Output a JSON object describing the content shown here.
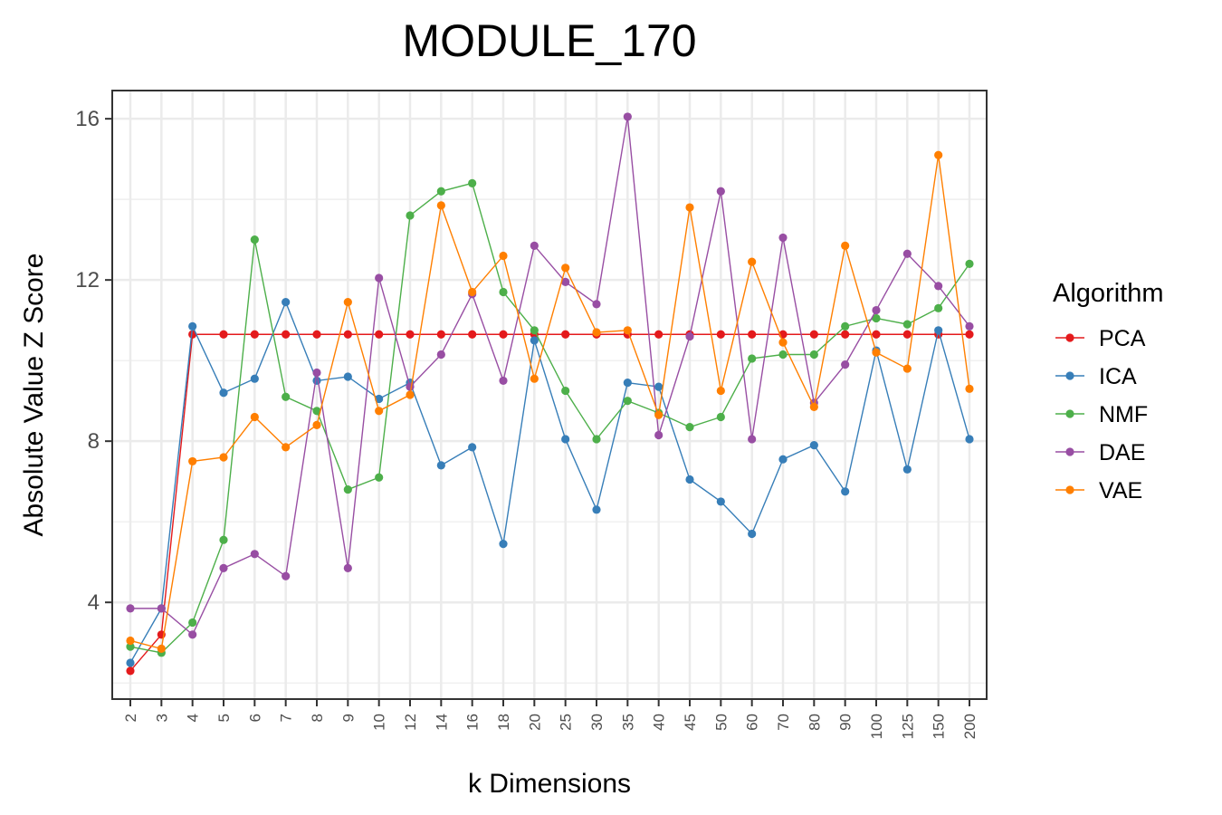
{
  "chart_data": {
    "type": "line",
    "title": "MODULE_170",
    "xlabel": "k Dimensions",
    "ylabel": "Absolute Value Z Score",
    "categories": [
      "2",
      "3",
      "4",
      "5",
      "6",
      "7",
      "8",
      "9",
      "10",
      "12",
      "14",
      "16",
      "18",
      "20",
      "25",
      "30",
      "35",
      "40",
      "45",
      "50",
      "60",
      "70",
      "80",
      "90",
      "100",
      "125",
      "150",
      "200"
    ],
    "yticks": [
      4,
      8,
      12,
      16
    ],
    "ylim": [
      1.6,
      16.7
    ],
    "grid": true,
    "legend": {
      "title": "Algorithm",
      "position": "right"
    },
    "series": [
      {
        "name": "PCA",
        "color": "#e41a1c",
        "values": [
          2.3,
          3.2,
          10.65,
          10.65,
          10.65,
          10.65,
          10.65,
          10.65,
          10.65,
          10.65,
          10.65,
          10.65,
          10.65,
          10.65,
          10.65,
          10.65,
          10.65,
          10.65,
          10.65,
          10.65,
          10.65,
          10.65,
          10.65,
          10.65,
          10.65,
          10.65,
          10.65,
          10.65
        ]
      },
      {
        "name": "ICA",
        "color": "#377eb8",
        "values": [
          2.5,
          3.85,
          10.85,
          9.2,
          9.55,
          11.45,
          9.5,
          9.6,
          9.05,
          9.45,
          7.4,
          7.85,
          5.45,
          10.5,
          8.05,
          6.3,
          9.45,
          9.35,
          7.05,
          6.5,
          5.7,
          7.55,
          7.9,
          6.75,
          10.25,
          7.3,
          10.75,
          8.05
        ]
      },
      {
        "name": "NMF",
        "color": "#4daf4a",
        "values": [
          2.9,
          2.75,
          3.5,
          5.55,
          13.0,
          9.1,
          8.75,
          6.8,
          7.1,
          13.6,
          14.2,
          14.4,
          11.7,
          10.75,
          9.25,
          8.05,
          9.0,
          8.7,
          8.35,
          8.6,
          10.05,
          10.15,
          10.15,
          10.85,
          11.05,
          10.9,
          11.3,
          12.4
        ]
      },
      {
        "name": "DAE",
        "color": "#984ea3",
        "values": [
          3.85,
          3.85,
          3.2,
          4.85,
          5.2,
          4.65,
          9.7,
          4.85,
          12.05,
          9.35,
          10.15,
          11.65,
          9.5,
          12.85,
          11.95,
          11.4,
          16.05,
          8.15,
          10.6,
          14.2,
          8.05,
          13.05,
          8.95,
          9.9,
          11.25,
          12.65,
          11.85,
          10.85
        ]
      },
      {
        "name": "VAE",
        "color": "#ff7f00",
        "values": [
          3.05,
          2.85,
          7.5,
          7.6,
          8.6,
          7.85,
          8.4,
          11.45,
          8.75,
          9.15,
          13.85,
          11.7,
          12.6,
          9.55,
          12.3,
          10.7,
          10.75,
          8.65,
          13.8,
          9.25,
          12.45,
          10.45,
          8.85,
          12.85,
          10.2,
          9.8,
          15.1,
          9.3
        ]
      }
    ]
  }
}
